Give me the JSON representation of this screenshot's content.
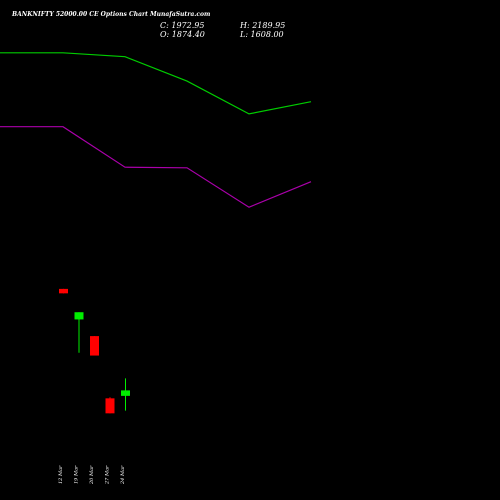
{
  "header": {
    "title": "BANKNIFTY 52000.00 CE Options Chart MunafaSutra.com",
    "close_label": "C: 1972.95",
    "high_label": "H: 2189.95",
    "open_label": "O: 1874.40",
    "low_label": "L: 1608.00"
  },
  "colors": {
    "background": "#000000",
    "bullish": "#00ee00",
    "bearish": "#ff0000",
    "upper_line": "#00cc00",
    "lower_line": "#aa00aa",
    "text": "#ffffff"
  },
  "chart_data": {
    "type": "candlestick",
    "title": "BANKNIFTY 52000.00 CE Options Chart MunafaSutra.com",
    "categories": [
      "12 Mar",
      "19 Mar",
      "20 Mar",
      "27 Mar",
      "24 Mar"
    ],
    "candles": [
      {
        "date": "12 Mar",
        "open": 3800,
        "high": 3800,
        "low": 3720,
        "close": 3720,
        "direction": "down"
      },
      {
        "date": "19 Mar",
        "open": 3250,
        "high": 3380,
        "low": 2650,
        "close": 3380,
        "direction": "up"
      },
      {
        "date": "20 Mar",
        "open": 2950,
        "high": 2950,
        "low": 2600,
        "close": 2600,
        "direction": "down"
      },
      {
        "date": "27 Mar",
        "open": 1830,
        "high": 1850,
        "low": 1560,
        "close": 1560,
        "direction": "down"
      },
      {
        "date": "24 Mar",
        "open": 1874.4,
        "high": 2189.95,
        "low": 1608.0,
        "close": 1972.95,
        "direction": "up"
      }
    ],
    "ylim": [
      0,
      9000
    ],
    "lines": [
      {
        "role": "upper",
        "points": [
          {
            "x": -1.05,
            "y": 8050
          },
          {
            "x": 0,
            "y": 8050
          },
          {
            "x": 1,
            "y": 7980
          },
          {
            "x": 2,
            "y": 7540
          },
          {
            "x": 3,
            "y": 6950
          },
          {
            "x": 4,
            "y": 7170
          }
        ]
      },
      {
        "role": "lower",
        "points": [
          {
            "x": -1.05,
            "y": 6720
          },
          {
            "x": 0,
            "y": 6720
          },
          {
            "x": 1,
            "y": 5990
          },
          {
            "x": 2,
            "y": 5980
          },
          {
            "x": 3,
            "y": 5270
          },
          {
            "x": 4,
            "y": 5730
          }
        ]
      }
    ],
    "grid": false,
    "legend": "none"
  }
}
